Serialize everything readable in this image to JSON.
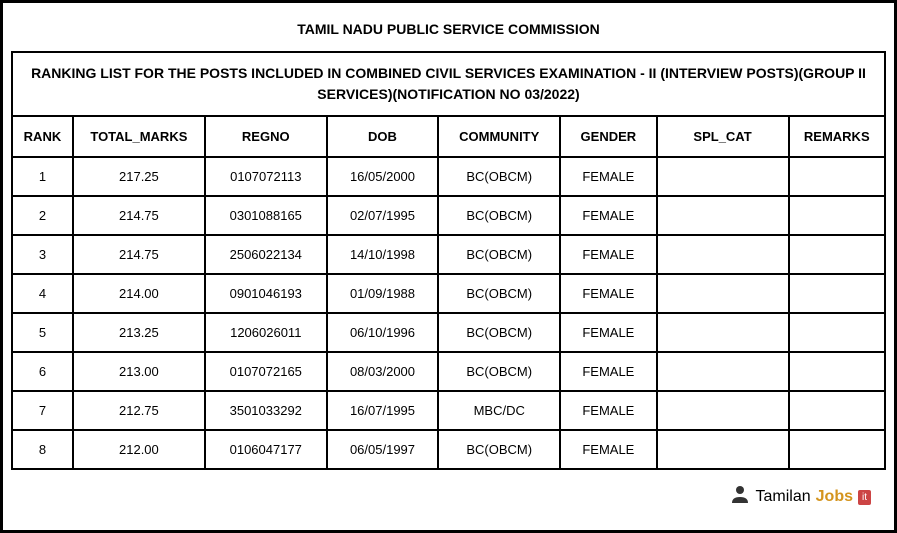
{
  "main_title": "TAMIL NADU PUBLIC SERVICE COMMISSION",
  "sub_title": "RANKING LIST FOR THE POSTS INCLUDED IN COMBINED CIVIL SERVICES EXAMINATION - II (INTERVIEW POSTS)(GROUP II SERVICES)(NOTIFICATION NO 03/2022)",
  "table": {
    "columns": [
      "RANK",
      "TOTAL_MARKS",
      "REGNO",
      "DOB",
      "COMMUNITY",
      "GENDER",
      "SPL_CAT",
      "REMARKS"
    ],
    "rows": [
      {
        "rank": "1",
        "marks": "217.25",
        "regno": "0107072113",
        "dob": "16/05/2000",
        "community": "BC(OBCM)",
        "gender": "FEMALE",
        "splcat": "",
        "remarks": ""
      },
      {
        "rank": "2",
        "marks": "214.75",
        "regno": "0301088165",
        "dob": "02/07/1995",
        "community": "BC(OBCM)",
        "gender": "FEMALE",
        "splcat": "",
        "remarks": ""
      },
      {
        "rank": "3",
        "marks": "214.75",
        "regno": "2506022134",
        "dob": "14/10/1998",
        "community": "BC(OBCM)",
        "gender": "FEMALE",
        "splcat": "",
        "remarks": ""
      },
      {
        "rank": "4",
        "marks": "214.00",
        "regno": "0901046193",
        "dob": "01/09/1988",
        "community": "BC(OBCM)",
        "gender": "FEMALE",
        "splcat": "",
        "remarks": ""
      },
      {
        "rank": "5",
        "marks": "213.25",
        "regno": "1206026011",
        "dob": "06/10/1996",
        "community": "BC(OBCM)",
        "gender": "FEMALE",
        "splcat": "",
        "remarks": ""
      },
      {
        "rank": "6",
        "marks": "213.00",
        "regno": "0107072165",
        "dob": "08/03/2000",
        "community": "BC(OBCM)",
        "gender": "FEMALE",
        "splcat": "",
        "remarks": ""
      },
      {
        "rank": "7",
        "marks": "212.75",
        "regno": "3501033292",
        "dob": "16/07/1995",
        "community": "MBC/DC",
        "gender": "FEMALE",
        "splcat": "",
        "remarks": ""
      },
      {
        "rank": "8",
        "marks": "212.00",
        "regno": "0106047177",
        "dob": "06/05/1997",
        "community": "BC(OBCM)",
        "gender": "FEMALE",
        "splcat": "",
        "remarks": ""
      }
    ]
  },
  "watermark": {
    "icon": "👤",
    "text1": "Tamilan",
    "text2": "Jobs",
    "badge": "it"
  },
  "styling": {
    "border_color": "#000000",
    "background_color": "#ffffff",
    "title_fontsize": 14,
    "header_fontsize": 13,
    "cell_fontsize": 13,
    "watermark_accent_color": "#d4941e",
    "watermark_badge_color": "#cc4444"
  }
}
